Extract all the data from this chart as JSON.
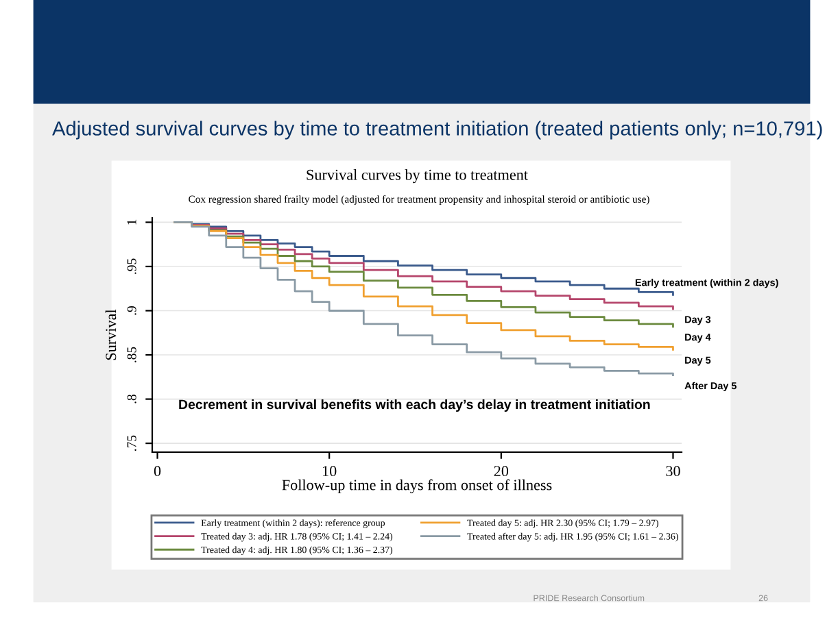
{
  "chart_data": {
    "type": "step",
    "title": "Adjusted survival curves by time to treatment initiation (treated patients only; n=10,791)",
    "subtitle": "Survival curves by time to treatment",
    "xlabel": "Follow-up time in days from onset of illness",
    "ylabel": "Survival",
    "x": [
      1,
      2,
      3,
      4,
      5,
      6,
      7,
      8,
      9,
      10,
      12,
      14,
      16,
      18,
      20,
      22,
      24,
      26,
      28,
      30
    ],
    "series": [
      {
        "name": "Early treatment (within 2 days): reference group",
        "color": "#3a5a8c",
        "values": [
          1,
          0.998,
          0.995,
          0.99,
          0.985,
          0.98,
          0.976,
          0.972,
          0.967,
          0.962,
          0.956,
          0.951,
          0.946,
          0.941,
          0.937,
          0.933,
          0.929,
          0.925,
          0.921,
          0.918
        ]
      },
      {
        "name": "Treated day 3: adj. HR 1.78 (95% CI; 1.41 – 2.24)",
        "color": "#b5456b",
        "values": [
          1,
          0.997,
          0.993,
          0.987,
          0.98,
          0.975,
          0.969,
          0.964,
          0.959,
          0.954,
          0.946,
          0.939,
          0.933,
          0.927,
          0.922,
          0.917,
          0.913,
          0.909,
          0.905,
          0.902
        ]
      },
      {
        "name": "Treated day 4: adj. HR 1.80 (95% CI; 1.36 – 2.37)",
        "color": "#6b8a3e",
        "values": [
          1,
          0.996,
          0.991,
          0.984,
          0.977,
          0.97,
          0.962,
          0.956,
          0.95,
          0.944,
          0.934,
          0.926,
          0.918,
          0.911,
          0.904,
          0.898,
          0.893,
          0.889,
          0.885,
          0.882
        ]
      },
      {
        "name": "Treated day 5: adj. HR 2.30 (95% CI; 1.79 – 2.97)",
        "color": "#f0a030",
        "values": [
          1,
          0.996,
          0.99,
          0.982,
          0.972,
          0.963,
          0.954,
          0.945,
          0.937,
          0.929,
          0.916,
          0.905,
          0.895,
          0.886,
          0.878,
          0.871,
          0.866,
          0.862,
          0.859,
          0.856
        ]
      },
      {
        "name": "Treated after day 5: adj. HR 1.95 (95% CI; 1.61 – 2.36)",
        "color": "#8a9aa5",
        "values": [
          1,
          0.995,
          0.985,
          0.972,
          0.96,
          0.948,
          0.935,
          0.922,
          0.91,
          0.9,
          0.885,
          0.872,
          0.862,
          0.853,
          0.846,
          0.84,
          0.836,
          0.832,
          0.829,
          0.827
        ]
      }
    ],
    "xlim": [
      -0.3,
      30.5
    ],
    "ylim": [
      0.74,
      1.005
    ],
    "xticks": [
      0,
      10,
      20,
      30
    ],
    "yticks": [
      {
        "value": 0.75,
        "label": ".75"
      },
      {
        "value": 0.8,
        "label": ".8"
      },
      {
        "value": 0.85,
        "label": ".85"
      },
      {
        "value": 0.9,
        "label": ".9"
      },
      {
        "value": 0.95,
        "label": ".95"
      },
      {
        "value": 1,
        "label": "1"
      }
    ],
    "grid": "y",
    "legend": "bottom",
    "marker": "none",
    "line_style": "solid",
    "annotations": [
      "Cox regression shared frailty model (adjusted for treatment propensity and inhospital steroid or antibiotic use)",
      "Early treatment (within 2 days)",
      "Day 3",
      "Day 4",
      "Day 5",
      "After Day 5",
      "Decrement in survival benefits with each day’s delay in treatment initiation",
      "PRIDE Research Consortium",
      "26"
    ]
  }
}
